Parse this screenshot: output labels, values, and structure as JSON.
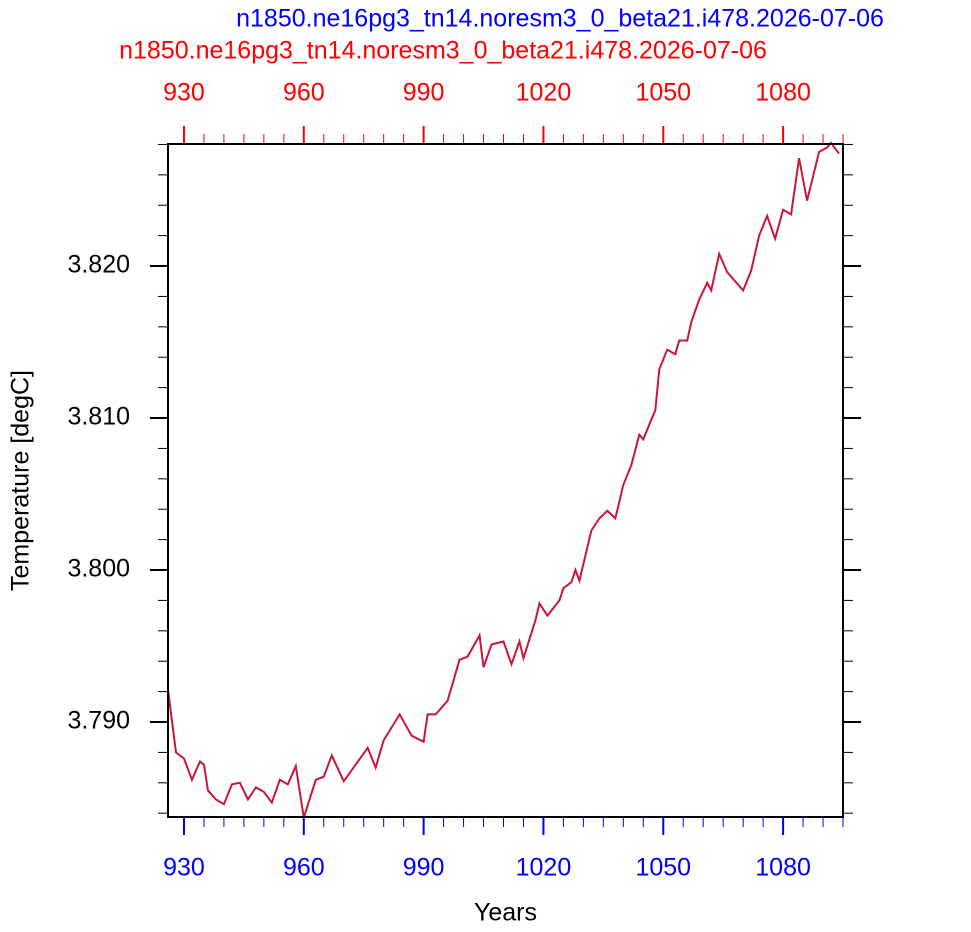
{
  "chart_data": {
    "type": "line",
    "titles": [
      {
        "text": "n1850.ne16pg3_tn14.noresm3_0_beta21.i478.2026-07-06",
        "color": "#0000ff"
      },
      {
        "text": "n1850.ne16pg3_tn14.noresm3_0_beta21.i478.2026-07-06",
        "color": "#ff0000"
      }
    ],
    "xlabel": "Years",
    "ylabel": "Temperature [degC]",
    "x": [
      926,
      928,
      930,
      932,
      934,
      935,
      936,
      938,
      940,
      942,
      944,
      946,
      948,
      950,
      952,
      954,
      956,
      958,
      960,
      963,
      965,
      967,
      970,
      973,
      976,
      978,
      980,
      984,
      987,
      990,
      991,
      993,
      996,
      999,
      1001,
      1004,
      1005,
      1007,
      1010,
      1012,
      1014,
      1015,
      1018,
      1019,
      1021,
      1024,
      1025,
      1027,
      1028,
      1029,
      1032,
      1034,
      1036,
      1038,
      1040,
      1042,
      1044,
      1045,
      1047,
      1048,
      1049,
      1051,
      1053,
      1054,
      1056,
      1057,
      1059,
      1061,
      1062,
      1064,
      1066,
      1070,
      1072,
      1074,
      1076,
      1078,
      1080,
      1082,
      1084,
      1086,
      1089,
      1091,
      1092,
      1094
    ],
    "series": [
      {
        "color": "#c8163c",
        "values": [
          3.7921,
          3.788,
          3.7876,
          3.7862,
          3.7874,
          3.7872,
          3.7855,
          3.7849,
          3.7846,
          3.7859,
          3.786,
          3.7849,
          3.7857,
          3.7854,
          3.7847,
          3.7862,
          3.7859,
          3.7871,
          3.7837,
          3.7862,
          3.7864,
          3.7878,
          3.7861,
          3.7872,
          3.7883,
          3.787,
          3.7888,
          3.7905,
          3.7891,
          3.7887,
          3.7905,
          3.7905,
          3.7914,
          3.7941,
          3.7943,
          3.7957,
          3.7936,
          3.7951,
          3.7953,
          3.7938,
          3.7953,
          3.7942,
          3.7967,
          3.7978,
          3.797,
          3.798,
          3.7988,
          3.7992,
          3.8,
          3.7993,
          3.8026,
          3.8034,
          3.8039,
          3.8034,
          3.8056,
          3.8069,
          3.8089,
          3.8086,
          3.8099,
          3.8105,
          3.8132,
          3.8145,
          3.8142,
          3.8151,
          3.8151,
          3.8163,
          3.8178,
          3.8189,
          3.8184,
          3.8208,
          3.8196,
          3.8184,
          3.8197,
          3.822,
          3.8233,
          3.8218,
          3.8237,
          3.8234,
          3.8271,
          3.8243,
          3.8275,
          3.8278,
          3.8281,
          3.8274
        ]
      }
    ],
    "xlim": [
      926,
      1095
    ],
    "ylim": [
      3.78375,
      3.82803
    ],
    "xticks": [
      930,
      960,
      990,
      1020,
      1050,
      1080
    ],
    "x_color": "#0000ff",
    "x2ticks": [
      930,
      960,
      990,
      1020,
      1050,
      1080
    ],
    "x2_color": "#ff0000",
    "yticks": [
      {
        "value": 3.79,
        "label": "3.790"
      },
      {
        "value": 3.8,
        "label": "3.800"
      },
      {
        "value": 3.81,
        "label": "3.810"
      },
      {
        "value": 3.82,
        "label": "3.820"
      }
    ],
    "xminor": 5,
    "yminor": 0.002
  }
}
